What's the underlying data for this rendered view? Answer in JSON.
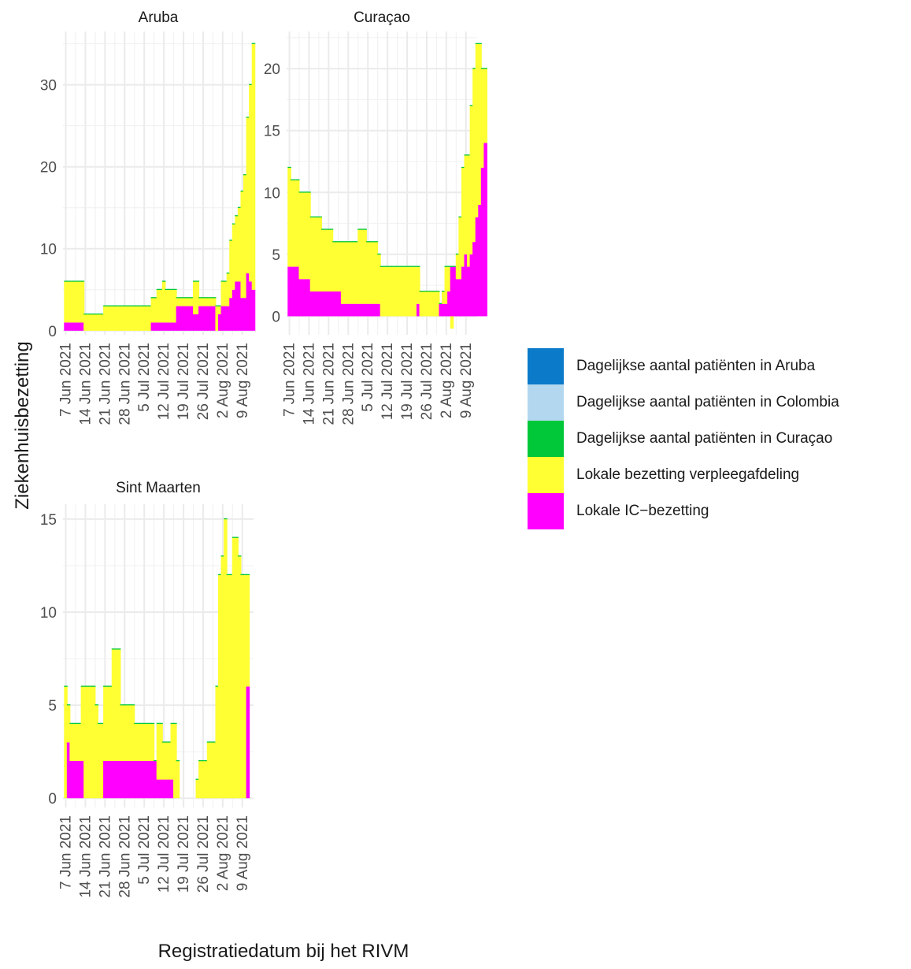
{
  "chart_data": {
    "type": "bar",
    "stacked": true,
    "xlabel": "Registratiedatum bij het RIVM",
    "ylabel": "Ziekenhuisbezetting",
    "x_start": "2021-06-06",
    "x_end": "2021-08-13",
    "x_ticks": [
      "7 Jun 2021",
      "14 Jun 2021",
      "21 Jun 2021",
      "28 Jun 2021",
      "5 Jul 2021",
      "12 Jul 2021",
      "19 Jul 2021",
      "26 Jul 2021",
      "2 Aug 2021",
      "9 Aug 2021"
    ],
    "legend": [
      {
        "name": "Dagelijkse aantal patiënten in Aruba",
        "color": "#0a7ac9"
      },
      {
        "name": "Dagelijkse aantal patiënten in Colombia",
        "color": "#b3d7ef"
      },
      {
        "name": "Dagelijkse aantal patiënten in Curaçao",
        "color": "#00c839"
      },
      {
        "name": "Lokale bezetting verpleegafdeling",
        "color": "#ffff33"
      },
      {
        "name": "Lokale IC−bezetting",
        "color": "#ff00ff"
      }
    ],
    "panels": [
      {
        "title": "Aruba",
        "ylim": [
          -0.5,
          36.5
        ],
        "yticks": [
          0,
          10,
          20,
          30
        ],
        "series": [
          {
            "name": "Lokale IC−bezetting",
            "values": [
              1,
              1,
              1,
              1,
              1,
              1,
              1,
              0,
              0,
              0,
              0,
              0,
              0,
              0,
              0,
              0,
              0,
              0,
              0,
              0,
              0,
              0,
              0,
              0,
              0,
              0,
              0,
              0,
              0,
              0,
              0,
              1,
              1,
              1,
              1,
              1,
              1,
              1,
              1,
              1,
              3,
              3,
              3,
              3,
              3,
              3,
              2,
              2,
              3,
              3,
              3,
              3,
              3,
              3,
              0,
              2,
              3,
              3,
              3,
              4,
              5,
              6,
              6,
              4,
              4,
              7,
              6,
              5
            ]
          },
          {
            "name": "Lokale bezetting verpleegafdeling",
            "values": [
              5,
              5,
              5,
              5,
              5,
              5,
              5,
              2,
              2,
              2,
              2,
              2,
              2,
              2,
              3,
              3,
              3,
              3,
              3,
              3,
              3,
              3,
              3,
              3,
              3,
              3,
              3,
              3,
              3,
              3,
              3,
              3,
              3,
              4,
              4,
              5,
              4,
              4,
              4,
              4,
              1,
              1,
              1,
              1,
              1,
              1,
              4,
              4,
              1,
              1,
              1,
              1,
              1,
              1,
              3,
              1,
              3,
              3,
              4,
              7,
              8,
              8,
              9,
              13,
              15,
              19,
              24,
              30
            ]
          }
        ]
      },
      {
        "title": "Curaçao",
        "ylim": [
          -1.5,
          23.0
        ],
        "yticks": [
          0,
          5,
          10,
          15,
          20
        ],
        "series": [
          {
            "name": "Lokale IC−bezetting",
            "values": [
              4,
              4,
              4,
              4,
              3,
              3,
              3,
              3,
              2,
              2,
              2,
              2,
              2,
              2,
              2,
              2,
              2,
              2,
              2,
              1,
              1,
              1,
              1,
              1,
              1,
              1,
              1,
              1,
              1,
              1,
              1,
              1,
              1,
              0,
              0,
              0,
              0,
              0,
              0,
              0,
              0,
              0,
              0,
              0,
              0,
              0,
              1,
              0,
              0,
              0,
              0,
              0,
              0,
              0,
              1,
              1,
              1,
              2,
              4,
              4,
              3,
              3,
              4,
              5,
              4,
              5,
              6,
              8,
              9,
              12,
              14
            ]
          },
          {
            "name": "Lokale bezetting verpleegafdeling",
            "values": [
              8,
              7,
              7,
              7,
              7,
              7,
              7,
              7,
              6,
              6,
              6,
              6,
              5,
              5,
              5,
              5,
              4,
              4,
              4,
              5,
              5,
              5,
              5,
              5,
              5,
              6,
              6,
              6,
              5,
              5,
              5,
              5,
              4,
              4,
              4,
              4,
              4,
              4,
              4,
              4,
              4,
              4,
              4,
              4,
              4,
              4,
              3,
              2,
              2,
              2,
              2,
              2,
              2,
              2,
              0,
              1,
              3,
              2,
              -1,
              0,
              2,
              5,
              8,
              8,
              9,
              12,
              14,
              14,
              13,
              8,
              6
            ]
          }
        ]
      },
      {
        "title": "Sint Maarten",
        "ylim": [
          -0.5,
          15.8
        ],
        "yticks": [
          0,
          5,
          10,
          15
        ],
        "series": [
          {
            "name": "Lokale IC−bezetting",
            "values": [
              0,
              3,
              2,
              2,
              2,
              2,
              2,
              0,
              0,
              0,
              0,
              0,
              0,
              0,
              2,
              2,
              2,
              2,
              2,
              2,
              2,
              2,
              2,
              2,
              2,
              2,
              2,
              2,
              2,
              2,
              2,
              2,
              2,
              1,
              1,
              1,
              1,
              1,
              1,
              0,
              0,
              0,
              0,
              0,
              0,
              0,
              0,
              0,
              0,
              0,
              0,
              0,
              0,
              0,
              0,
              0,
              0,
              0,
              0,
              0,
              0,
              0,
              0,
              0,
              0,
              6
            ]
          },
          {
            "name": "Lokale bezetting verpleegafdeling",
            "values": [
              6,
              2,
              2,
              2,
              2,
              2,
              4,
              6,
              6,
              6,
              6,
              5,
              4,
              4,
              4,
              4,
              4,
              6,
              6,
              6,
              3,
              3,
              3,
              3,
              3,
              2,
              2,
              2,
              2,
              2,
              2,
              2,
              0,
              3,
              3,
              2,
              2,
              2,
              3,
              4,
              2,
              0,
              0,
              0,
              0,
              0,
              0,
              1,
              2,
              2,
              2,
              3,
              3,
              3,
              6,
              12,
              13,
              15,
              12,
              12,
              14,
              14,
              13,
              12,
              12,
              6
            ]
          }
        ]
      }
    ]
  }
}
